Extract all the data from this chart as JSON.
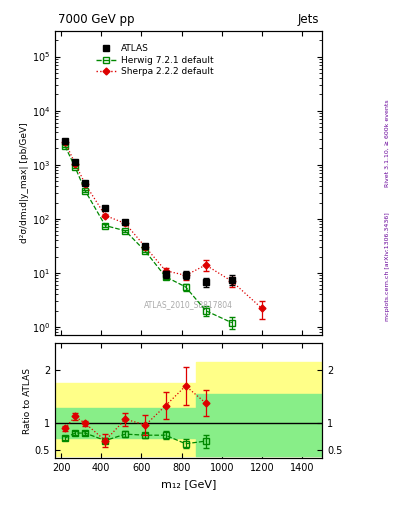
{
  "title_left": "7000 GeV pp",
  "title_right": "Jets",
  "ylabel_main": "d²σ/dm₁d|y_max| [pb/GeV]",
  "ylabel_ratio": "Ratio to ATLAS",
  "xlabel": "m₁₂ [GeV]",
  "watermark": "ATLAS_2010_S8817804",
  "right_label_top": "Rivet 3.1.10, ≥ 600k events",
  "right_label_bot": "mcplots.cern.ch [arXiv:1306.3436]",
  "x_centers": [
    220,
    270,
    320,
    420,
    520,
    620,
    720,
    820,
    920,
    1050,
    1200,
    1400
  ],
  "atlas_y": [
    2700,
    1100,
    450,
    160,
    88,
    32,
    9.5,
    9.2,
    6.8,
    7.5,
    null,
    null
  ],
  "atlas_yerr_lo": [
    200,
    80,
    30,
    12,
    7,
    2.5,
    1.5,
    1.5,
    1.2,
    1.5,
    null,
    null
  ],
  "atlas_yerr_hi": [
    200,
    80,
    30,
    12,
    7,
    2.5,
    1.5,
    1.5,
    1.2,
    1.5,
    null,
    null
  ],
  "herwig_y": [
    2200,
    900,
    330,
    75,
    60,
    25,
    8.5,
    5.5,
    2.0,
    1.2,
    null,
    null
  ],
  "herwig_yerr": [
    80,
    40,
    15,
    5,
    3,
    1,
    0.8,
    0.8,
    0.4,
    0.3,
    null,
    null
  ],
  "sherpa_y": [
    2600,
    1050,
    440,
    115,
    82,
    30,
    11.0,
    9.0,
    14.0,
    7.0,
    2.2,
    null
  ],
  "sherpa_yerr": [
    150,
    70,
    25,
    8,
    5,
    2,
    1.5,
    1.5,
    3.0,
    1.5,
    0.8,
    null
  ],
  "ratio_x": [
    220,
    270,
    320,
    420,
    520,
    620,
    720,
    820,
    920,
    1050,
    1200,
    1400
  ],
  "herwig_ratio": [
    0.73,
    0.82,
    0.82,
    0.68,
    0.8,
    0.78,
    0.78,
    0.62,
    0.67,
    null,
    null,
    null
  ],
  "herwig_ratio_err_lo": [
    0.04,
    0.04,
    0.04,
    0.05,
    0.05,
    0.05,
    0.07,
    0.08,
    0.12,
    null,
    null,
    null
  ],
  "herwig_ratio_err_hi": [
    0.04,
    0.04,
    0.04,
    0.05,
    0.05,
    0.05,
    0.07,
    0.08,
    0.12,
    null,
    null,
    null
  ],
  "sherpa_ratio": [
    0.91,
    1.13,
    1.0,
    0.68,
    1.08,
    0.97,
    1.33,
    1.7,
    1.38,
    null,
    null,
    null
  ],
  "sherpa_ratio_err_lo": [
    0.05,
    0.07,
    0.05,
    0.12,
    0.12,
    0.18,
    0.25,
    0.35,
    0.25,
    null,
    null,
    null
  ],
  "sherpa_ratio_err_hi": [
    0.05,
    0.07,
    0.05,
    0.12,
    0.12,
    0.18,
    0.25,
    0.35,
    0.25,
    null,
    null,
    null
  ],
  "yellow_band_edges": [
    170,
    470,
    720,
    870,
    1500
  ],
  "yellow_band_lo": [
    0.4,
    0.4,
    0.4,
    0.4,
    0.4
  ],
  "yellow_band_hi": [
    1.75,
    1.75,
    1.75,
    2.15,
    2.15
  ],
  "green_band_edges": [
    170,
    470,
    720,
    870,
    1500
  ],
  "green_band_lo": [
    0.72,
    0.72,
    0.72,
    0.4,
    0.4
  ],
  "green_band_hi": [
    1.28,
    1.28,
    1.28,
    1.55,
    1.55
  ],
  "xlim": [
    170,
    1500
  ],
  "ylim_main": [
    0.7,
    300000.0
  ],
  "ylim_ratio": [
    0.35,
    2.5
  ],
  "atlas_color": "#000000",
  "herwig_color": "#008800",
  "sherpa_color": "#dd0000",
  "yellow_color": "#ffff88",
  "green_color": "#88ee88"
}
